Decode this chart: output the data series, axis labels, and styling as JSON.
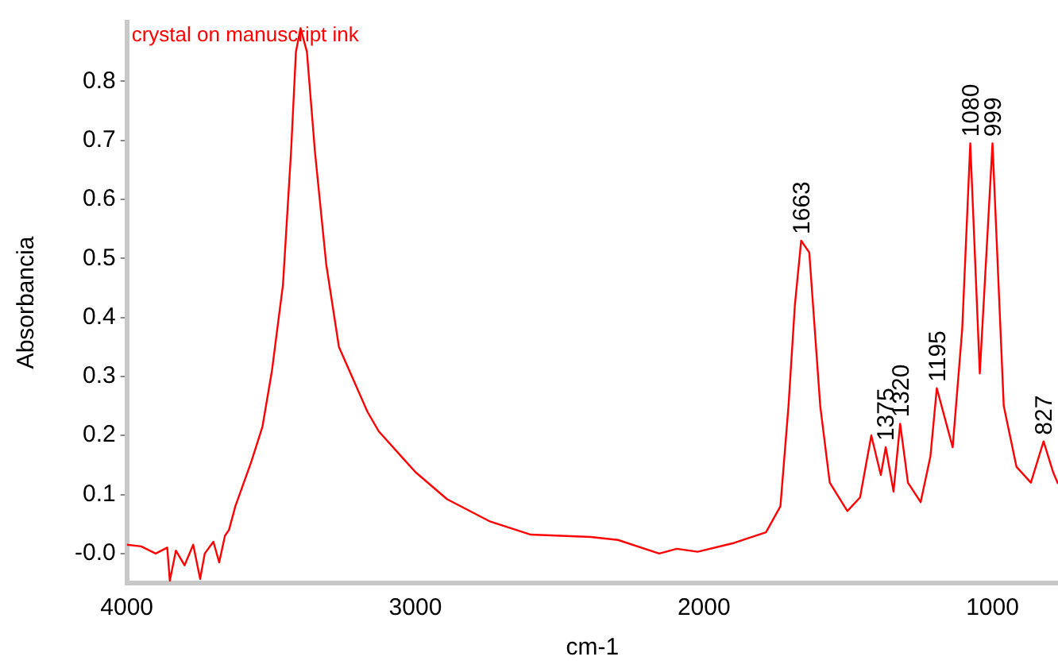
{
  "chart_data": {
    "type": "line",
    "xlabel": "cm-1",
    "ylabel": "Absorbancia",
    "xlim": [
      4000,
      773
    ],
    "xticks": [
      4000,
      3000,
      2000,
      1000
    ],
    "ylim": [
      -0.05,
      0.9
    ],
    "yticks": [
      {
        "value": 0,
        "label": "-0.0"
      },
      0.1,
      0.2,
      0.3,
      0.4,
      0.5,
      0.6,
      0.7,
      0.8
    ],
    "grid": false,
    "legend": false,
    "marker": "none",
    "line_style": "solid",
    "series": [
      {
        "name": "crystal on manuscript ink",
        "color": "#ff0000",
        "x": [
          4000,
          3950,
          3900,
          3860,
          3851,
          3830,
          3800,
          3770,
          3746,
          3730,
          3700,
          3680,
          3660,
          3646,
          3624,
          3569,
          3530,
          3497,
          3459,
          3431,
          3414,
          3398,
          3376,
          3348,
          3309,
          3265,
          3166,
          3127,
          3000,
          2890,
          2740,
          2600,
          2392,
          2298,
          2155,
          2094,
          2022,
          1895,
          1785,
          1735,
          1707,
          1685,
          1663,
          1635,
          1597,
          1564,
          1503,
          1459,
          1420,
          1387,
          1370,
          1343,
          1320,
          1293,
          1249,
          1215,
          1193,
          1138,
          1105,
          1077,
          1044,
          1000,
          961,
          917,
          867,
          823,
          790,
          773
        ],
        "values": [
          0.015,
          0.012,
          0.0,
          0.01,
          -0.046,
          0.005,
          -0.02,
          0.015,
          -0.043,
          0.0,
          0.02,
          -0.015,
          0.03,
          0.04,
          0.08,
          0.155,
          0.215,
          0.31,
          0.455,
          0.68,
          0.85,
          0.89,
          0.85,
          0.68,
          0.49,
          0.35,
          0.24,
          0.207,
          0.138,
          0.092,
          0.054,
          0.032,
          0.028,
          0.023,
          0.0,
          0.008,
          0.003,
          0.018,
          0.036,
          0.08,
          0.25,
          0.42,
          0.53,
          0.51,
          0.25,
          0.12,
          0.072,
          0.095,
          0.2,
          0.133,
          0.18,
          0.105,
          0.22,
          0.12,
          0.087,
          0.165,
          0.28,
          0.18,
          0.38,
          0.695,
          0.305,
          0.695,
          0.25,
          0.147,
          0.12,
          0.19,
          0.138,
          0.118
        ]
      }
    ],
    "annotations": [
      {
        "text": "1663",
        "x": 1663,
        "y": 0.53
      },
      {
        "text": "1375",
        "x": 1370,
        "y": 0.18
      },
      {
        "text": "1320",
        "x": 1320,
        "y": 0.22
      },
      {
        "text": "1195",
        "x": 1193,
        "y": 0.28
      },
      {
        "text": "1080",
        "x": 1077,
        "y": 0.695
      },
      {
        "text": "999",
        "x": 1000,
        "y": 0.695
      },
      {
        "text": "827",
        "x": 823,
        "y": 0.19
      }
    ]
  }
}
